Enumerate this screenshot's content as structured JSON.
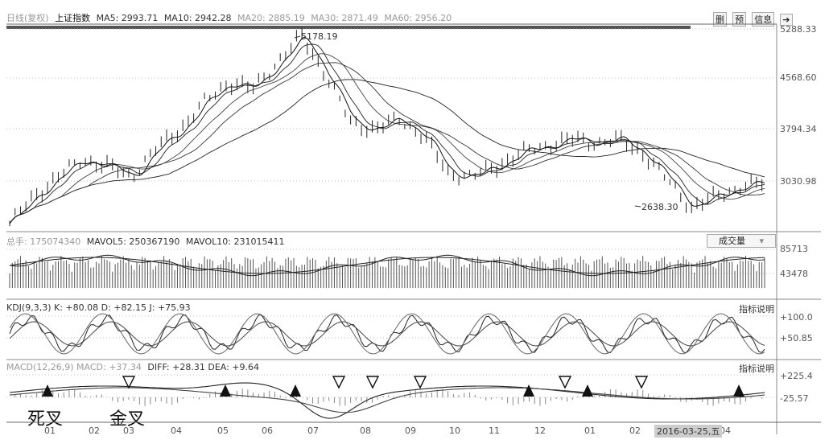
{
  "header": {
    "period": "日线(复权)",
    "index_name": "上证指数",
    "ma5": "MA5: 2993.71",
    "ma10": "MA10: 2942.28",
    "ma20": "MA20: 2885.19",
    "ma30": "MA30: 2871.49",
    "ma60": "MA60: 2956.20",
    "tools": [
      "删",
      "预",
      "信息",
      "➔"
    ]
  },
  "price_axis": [
    "5288.33",
    "4568.60",
    "3794.34",
    "3030.98"
  ],
  "annotations": {
    "high": "5178.19",
    "low": "2638.30"
  },
  "volume": {
    "total_label": "总手: 175074340",
    "mavol5": "MAVOL5: 250367190",
    "mavol10": "MAVOL10: 231015411",
    "button": "成交量",
    "axis": [
      "85713",
      "43478"
    ]
  },
  "kdj": {
    "label": "KDJ(9,3,3) K: +80.08 D: +82.15 J: +75.93",
    "link": "指标说明",
    "axis": [
      "+100.0",
      "+50.85"
    ]
  },
  "macd": {
    "label_gray": "MACD(12,26,9) MACD: +37.34",
    "label_dark": "DIFF: +28.31 DEA: +9.64",
    "link": "指标说明",
    "axis": [
      "+225.4",
      "-25.57"
    ]
  },
  "cross_labels": {
    "death": "死叉",
    "golden": "金叉"
  },
  "time_axis": {
    "months": [
      "01",
      "02",
      "03",
      "04",
      "05",
      "06",
      "07",
      "08",
      "09",
      "10",
      "11",
      "12",
      "01",
      "02",
      "04"
    ],
    "cursor_date": "2016-03-25,五"
  },
  "chart_data": {
    "type": "line",
    "title": "上证指数 日线(复权)",
    "series": [
      {
        "name": "close",
        "values": [
          2400,
          2800,
          3100,
          3350,
          3250,
          3100,
          3500,
          3800,
          4200,
          4500,
          4400,
          4800,
          5178.19,
          4600,
          3900,
          3800,
          3950,
          3700,
          3150,
          3100,
          3250,
          3450,
          3550,
          3650,
          3600,
          3650,
          3450,
          3050,
          2638.3,
          2800,
          2950,
          3000
        ]
      }
    ],
    "highlights": {
      "max": 5178.19,
      "min": 2638.3
    },
    "y_ticks": [
      5288.33,
      4568.6,
      3794.34,
      3030.98
    ],
    "x_labels": [
      "01",
      "02",
      "03",
      "04",
      "05",
      "06",
      "07",
      "08",
      "09",
      "10",
      "11",
      "12",
      "01",
      "02",
      "04"
    ],
    "markers": {
      "filled_up": [
        "death",
        "death",
        "death",
        "death",
        "death"
      ],
      "hollow_down": [
        "golden",
        "golden",
        "golden",
        "golden",
        "golden",
        "golden"
      ]
    }
  }
}
